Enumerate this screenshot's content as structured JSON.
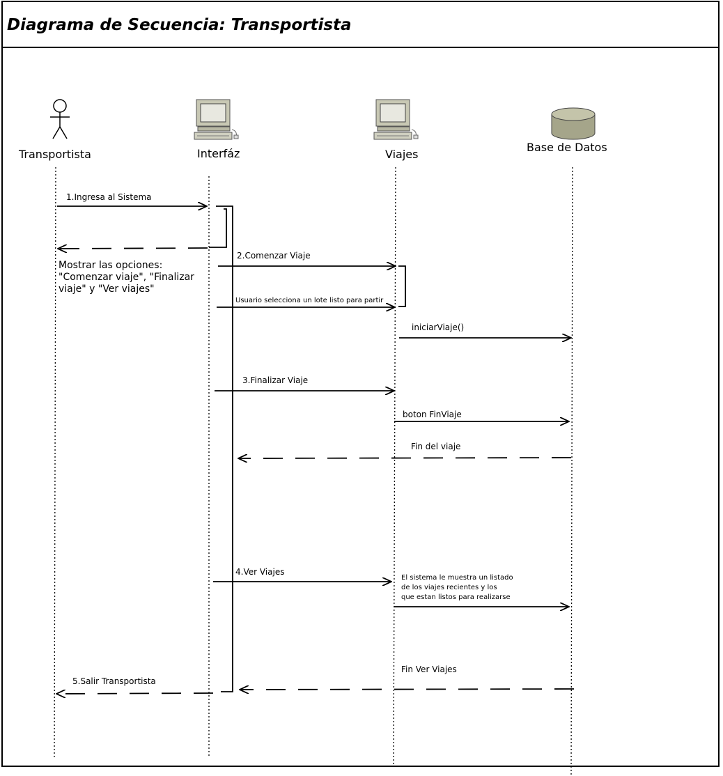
{
  "title": "Diagrama de Secuencia: Transportista",
  "lifelines": {
    "transportista": "Transportista",
    "interfaz": "Interfáz",
    "viajes": "Viajes",
    "base_datos": "Base de Datos"
  },
  "messages": {
    "m1": "1.Ingresa al Sistema",
    "m_return_options": "Mostrar las opciones:\n\"Comenzar viaje\", \"Finalizar\nviaje\" y \"Ver viajes\"",
    "m2": "2.Comenzar Viaje",
    "m2b": "Usuario selecciona un lote listo para partir",
    "m2c": "iniciarViaje()",
    "m3": "3.Finalizar Viaje",
    "m3b": "boton FinViaje",
    "m3c": "Fin del viaje",
    "m4": "4.Ver Viajes",
    "m4b": "El sistema le muestra un listado\nde los viajes recientes y los\nque estan listos para realizarse",
    "m4c": "Fin Ver Viajes",
    "m5": "5.Salir Transportista"
  }
}
